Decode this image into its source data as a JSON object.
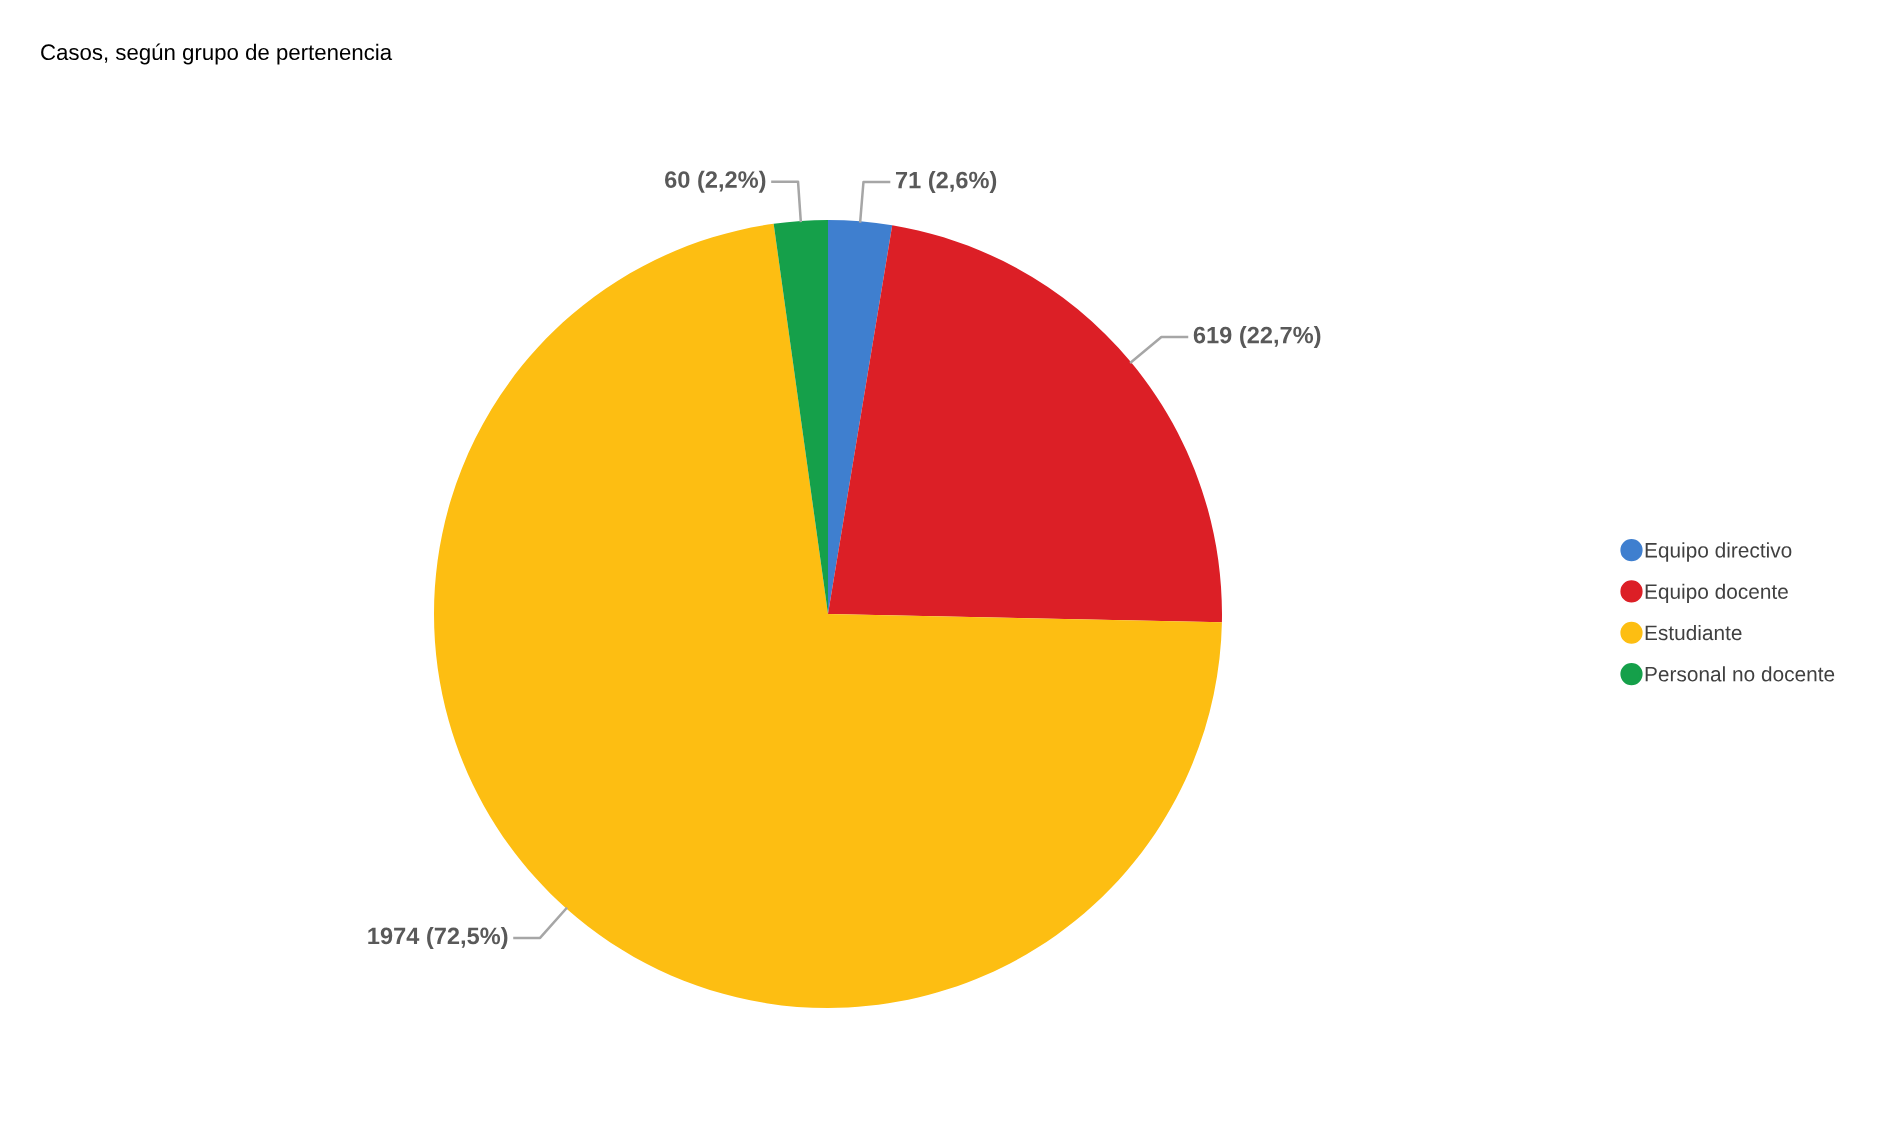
{
  "chart_data": {
    "type": "pie",
    "title": "Casos, según grupo de pertenencia",
    "categories": [
      "Equipo directivo",
      "Equipo docente",
      "Estudiante",
      "Personal no docente"
    ],
    "values": [
      71,
      619,
      1974,
      60
    ],
    "colors": [
      "#3f7fcf",
      "#dc1f26",
      "#fdbe12",
      "#15a04a"
    ],
    "value_labels": [
      "71 (2,6%)",
      "619 (22,7%)",
      "1974 (72,5%)",
      "60 (2,2%)"
    ],
    "legend": "right"
  }
}
